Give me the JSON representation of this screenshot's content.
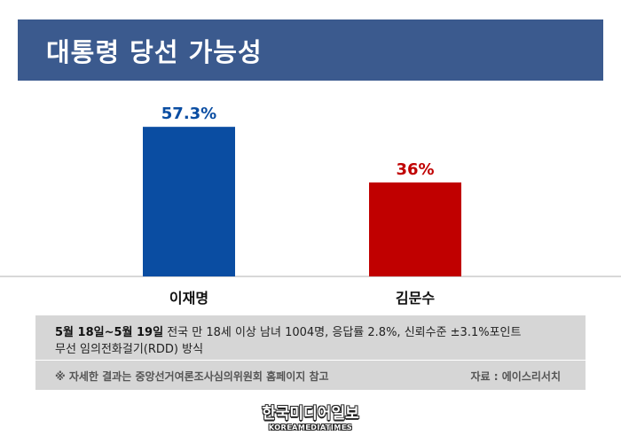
{
  "header": {
    "title": "대통령 당선 가능성"
  },
  "chart_data": {
    "type": "bar",
    "categories": [
      "이재명",
      "김문수"
    ],
    "values": [
      57.3,
      36
    ],
    "value_labels": [
      "57.3%",
      "36%"
    ],
    "colors": [
      "#0a4da2",
      "#c00000"
    ],
    "label_colors": [
      "#0a4da2",
      "#c00000"
    ],
    "ylim": [
      0,
      75
    ],
    "grid": false
  },
  "info": {
    "date_range": "5월 18일~5월 19일",
    "line1_rest": " 전국 만 18세 이상 남녀 1004명, 응답률 2.8%, 신뢰수준 ±3.1%포인트",
    "line2": "무선 임의전화걸기(RDD) 방식",
    "note": "※ 자세한 결과는 중앙선거여론조사심의위원회 홈페이지 참고",
    "source": "자료 : 에이스리서치"
  },
  "logo": {
    "main": "한국미디어일보",
    "sub": "KOREAMEDIATIMES"
  }
}
